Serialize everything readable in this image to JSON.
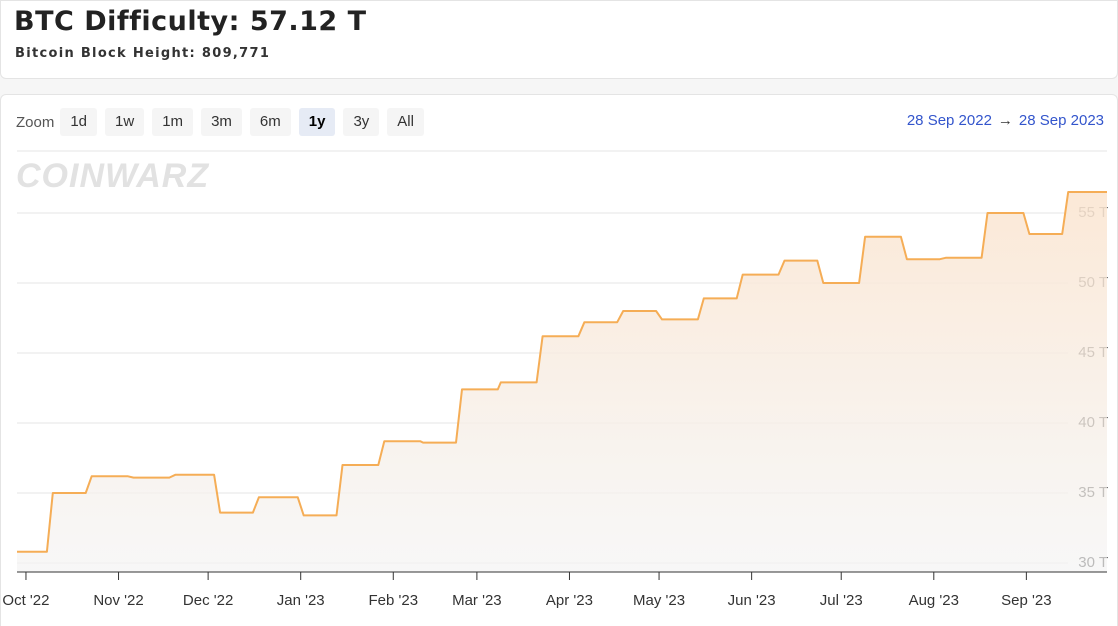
{
  "header": {
    "title": "BTC Difficulty: 57.12 T",
    "subtitle": "Bitcoin Block Height: 809,771"
  },
  "zoom": {
    "label": "Zoom",
    "buttons": [
      "1d",
      "1w",
      "1m",
      "3m",
      "6m",
      "1y",
      "3y",
      "All"
    ],
    "selected": "1y"
  },
  "range": {
    "from": "28 Sep 2022",
    "arrow": "→",
    "to": "28 Sep 2023"
  },
  "watermark": "COINWARZ",
  "chart_data": {
    "type": "line",
    "color": "#f5ad56",
    "grid": true,
    "x": [
      "2022-09-28",
      "2022-10-08",
      "2022-10-10",
      "2022-10-21",
      "2022-10-23",
      "2022-11-04",
      "2022-11-06",
      "2022-11-18",
      "2022-11-20",
      "2022-12-03",
      "2022-12-05",
      "2022-12-16",
      "2022-12-18",
      "2022-12-31",
      "2023-01-02",
      "2023-01-13",
      "2023-01-15",
      "2023-01-27",
      "2023-01-29",
      "2023-02-10",
      "2023-02-11",
      "2023-02-22",
      "2023-02-24",
      "2023-03-08",
      "2023-03-09",
      "2023-03-21",
      "2023-03-23",
      "2023-04-04",
      "2023-04-06",
      "2023-04-17",
      "2023-04-19",
      "2023-04-30",
      "2023-05-02",
      "2023-05-14",
      "2023-05-16",
      "2023-05-27",
      "2023-05-29",
      "2023-06-10",
      "2023-06-12",
      "2023-06-23",
      "2023-06-25",
      "2023-07-07",
      "2023-07-09",
      "2023-07-21",
      "2023-07-23",
      "2023-08-03",
      "2023-08-05",
      "2023-08-17",
      "2023-08-19",
      "2023-08-31",
      "2023-09-02",
      "2023-09-13",
      "2023-09-15",
      "2023-09-28"
    ],
    "values": [
      30.8,
      30.8,
      35.0,
      35.0,
      36.2,
      36.2,
      36.1,
      36.1,
      36.3,
      36.3,
      33.6,
      33.6,
      34.7,
      34.7,
      33.4,
      33.4,
      37.0,
      37.0,
      38.7,
      38.7,
      38.6,
      38.6,
      42.4,
      42.4,
      42.9,
      42.9,
      46.2,
      46.2,
      47.2,
      47.2,
      48.0,
      48.0,
      47.4,
      47.4,
      48.9,
      48.9,
      50.6,
      50.6,
      51.6,
      51.6,
      50.0,
      50.0,
      53.3,
      53.3,
      51.7,
      51.7,
      51.8,
      51.8,
      55.0,
      55.0,
      53.5,
      53.5,
      56.5,
      56.5
    ],
    "xlim": [
      "2022-09-28",
      "2023-09-28"
    ],
    "xticks": [
      {
        "value": "2022-10-01",
        "label": "Oct '22"
      },
      {
        "value": "2022-11-01",
        "label": "Nov '22"
      },
      {
        "value": "2022-12-01",
        "label": "Dec '22"
      },
      {
        "value": "2023-01-01",
        "label": "Jan '23"
      },
      {
        "value": "2023-02-01",
        "label": "Feb '23"
      },
      {
        "value": "2023-03-01",
        "label": "Mar '23"
      },
      {
        "value": "2023-04-01",
        "label": "Apr '23"
      },
      {
        "value": "2023-05-01",
        "label": "May '23"
      },
      {
        "value": "2023-06-01",
        "label": "Jun '23"
      },
      {
        "value": "2023-07-01",
        "label": "Jul '23"
      },
      {
        "value": "2023-08-01",
        "label": "Aug '23"
      },
      {
        "value": "2023-09-01",
        "label": "Sep '23"
      }
    ],
    "ylim": [
      29.36,
      59.36
    ],
    "yticks": [
      {
        "value": 30,
        "label": "30 T"
      },
      {
        "value": 35,
        "label": "35 T"
      },
      {
        "value": 40,
        "label": "40 T"
      },
      {
        "value": 45,
        "label": "45 T"
      },
      {
        "value": 50,
        "label": "50 T"
      },
      {
        "value": 55,
        "label": "55 T"
      }
    ]
  }
}
